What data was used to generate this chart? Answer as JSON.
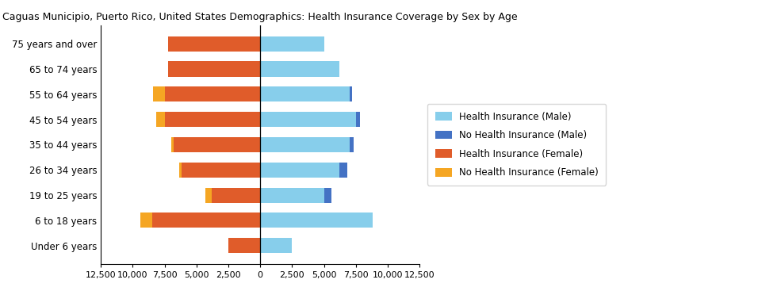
{
  "title": "Caguas Municipio, Puerto Rico, United States Demographics: Health Insurance Coverage by Sex by Age",
  "age_groups": [
    "Under 6 years",
    "6 to 18 years",
    "19 to 25 years",
    "26 to 34 years",
    "35 to 44 years",
    "45 to 54 years",
    "55 to 64 years",
    "65 to 74 years",
    "75 years and over"
  ],
  "health_ins_male": [
    2500,
    8800,
    5000,
    6200,
    7000,
    7500,
    7000,
    6200,
    5000
  ],
  "no_health_ins_male": [
    0,
    0,
    600,
    600,
    300,
    300,
    200,
    0,
    0
  ],
  "health_ins_female": [
    2500,
    8500,
    3800,
    6200,
    6800,
    7500,
    7500,
    7200,
    7200
  ],
  "no_health_ins_female": [
    0,
    900,
    500,
    150,
    200,
    650,
    900,
    0,
    0
  ],
  "color_health_male": "#87CEEB",
  "color_no_health_male": "#4472C4",
  "color_health_female": "#E05C2A",
  "color_no_health_female": "#F5A623",
  "xlim": [
    -12500,
    12500
  ],
  "xticks": [
    -12500,
    -10000,
    -7500,
    -5000,
    -2500,
    0,
    2500,
    5000,
    7500,
    10000,
    12500
  ],
  "xticklabels": [
    "12,500",
    "10,000",
    "7,500",
    "5,000",
    "2,500",
    "0",
    "2,500",
    "5,000",
    "7,500",
    "10,000",
    "12,500"
  ],
  "legend_labels": [
    "Health Insurance (Male)",
    "No Health Insurance (Male)",
    "Health Insurance (Female)",
    "No Health Insurance (Female)"
  ],
  "legend_colors": [
    "#87CEEB",
    "#4472C4",
    "#E05C2A",
    "#F5A623"
  ],
  "figsize": [
    9.85,
    3.67
  ],
  "dpi": 100
}
